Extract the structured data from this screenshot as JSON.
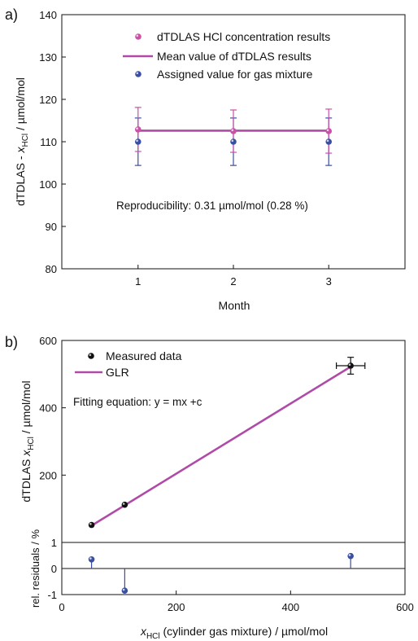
{
  "chart_data": [
    {
      "type": "scatter",
      "panel_label": "a)",
      "xlabel": "Month",
      "ylabel": "dTDLAS - xHCl / µmol/mol",
      "ylabel_parts": {
        "pre": "dTDLAS - ",
        "var": "x",
        "sub": "HCl",
        "post": " / µmol/mol"
      },
      "xlim": [
        0.2,
        3.8
      ],
      "ylim": [
        80,
        140
      ],
      "xticks": [
        1,
        2,
        3
      ],
      "yticks": [
        80,
        90,
        100,
        110,
        120,
        130,
        140
      ],
      "legend_position": "top-center",
      "series": [
        {
          "name": "dTDLAS HCl concentration results",
          "color": "#cc4fa8",
          "x": [
            1,
            2,
            3
          ],
          "y": [
            112.9,
            112.5,
            112.5
          ],
          "err": [
            5.2,
            5.0,
            5.2
          ]
        },
        {
          "name": "Mean value of dTDLAS results",
          "color": "#b04aa7",
          "kind": "line",
          "x": [
            1,
            3
          ],
          "y": [
            112.6,
            112.6
          ]
        },
        {
          "name": "Assigned value for gas mixture",
          "color": "#3a4fa3",
          "x": [
            1,
            2,
            3
          ],
          "y": [
            110.0,
            110.0,
            110.0
          ],
          "err": [
            5.6,
            5.6,
            5.6
          ]
        }
      ],
      "annotation": "Reproducibility: 0.31 µmol/mol (0.28 %)"
    },
    {
      "type": "scatter",
      "panel_label": "b)",
      "xlabel": "xHCl (cylinder gas mixture) / µmol/mol",
      "xlabel_parts": {
        "var": "x",
        "sub": "HCl",
        "post": " (cylinder gas mixture) / µmol/mol"
      },
      "ylabel": "dTDLAS xHCl / µmol/mol",
      "ylabel_parts": {
        "pre": "dTDLAS ",
        "var": "x",
        "sub": "HCl",
        "post": " / µmol/mol"
      },
      "xlim": [
        0,
        600
      ],
      "ylim": [
        0,
        600
      ],
      "xticks": [
        0,
        200,
        400,
        600
      ],
      "yticks": [
        200,
        400,
        600
      ],
      "legend_position": "top-left",
      "series": [
        {
          "name": "Measured data",
          "color": "#111111",
          "x": [
            52,
            110,
            505
          ],
          "y": [
            52,
            112,
            525
          ],
          "yerr": [
            2,
            3,
            25
          ],
          "xerr": [
            2,
            3,
            25
          ]
        },
        {
          "name": "GLR",
          "color": "#b04aa7",
          "kind": "line",
          "x": [
            52,
            505
          ],
          "y": [
            50,
            522
          ]
        }
      ],
      "annotation": "Fitting equation: y = mx +c"
    },
    {
      "type": "scatter",
      "panel_label": "",
      "ylabel": "rel. residuals / %",
      "xlim": [
        0,
        600
      ],
      "ylim": [
        -1,
        1
      ],
      "yticks": [
        -1,
        0,
        1
      ],
      "series": [
        {
          "name": "",
          "color": "#3a4fa3",
          "kind": "stem",
          "x": [
            52,
            110,
            505
          ],
          "y": [
            0.35,
            -0.85,
            0.48
          ]
        }
      ]
    }
  ]
}
